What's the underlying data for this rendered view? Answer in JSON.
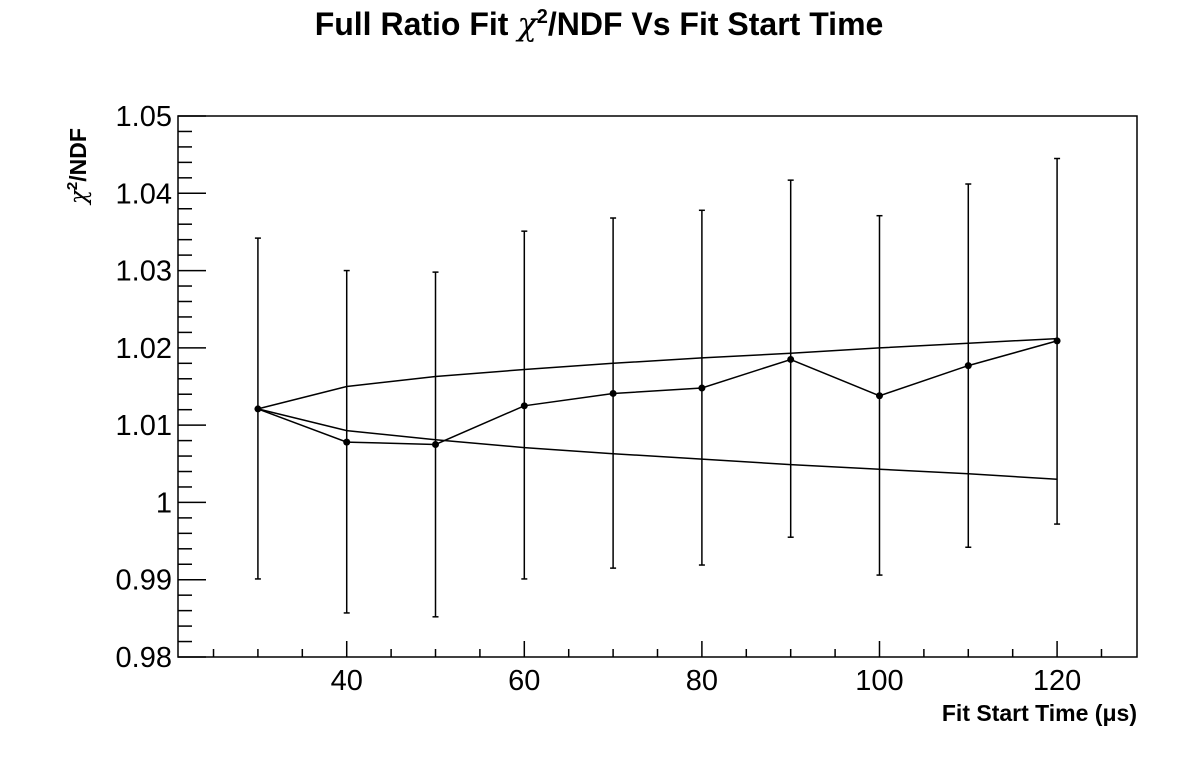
{
  "chart_data": {
    "type": "scatter",
    "title": "Full Ratio Fit χ²/NDF Vs Fit Start Time",
    "title_parts": {
      "pre": "Full Ratio Fit ",
      "chi": "χ",
      "sup": "2",
      "post": "/NDF Vs Fit Start Time"
    },
    "xlabel": "Fit Start Time (μs)",
    "ylabel": "χ²/NDF",
    "ylabel_parts": {
      "chi": "χ",
      "sup": "2",
      "post": "/NDF"
    },
    "xlim": [
      21,
      129
    ],
    "ylim": [
      0.98,
      1.05
    ],
    "x_ticks": [
      40,
      60,
      80,
      100,
      120
    ],
    "x_tick_labels": [
      "40",
      "60",
      "80",
      "100",
      "120"
    ],
    "y_ticks": [
      0.98,
      0.99,
      1.0,
      1.01,
      1.02,
      1.03,
      1.04,
      1.05
    ],
    "y_tick_labels": [
      "0.98",
      "0.99",
      "1",
      "1.01",
      "1.02",
      "1.03",
      "1.04",
      "1.05"
    ],
    "grid": false,
    "legend": "none",
    "series": [
      {
        "kind": "points-with-errors",
        "x": [
          30,
          40,
          50,
          60,
          70,
          80,
          90,
          100,
          110,
          120
        ],
        "y": [
          1.0121,
          1.0078,
          1.0075,
          1.0125,
          1.0141,
          1.0148,
          1.0185,
          1.0138,
          1.0177,
          1.0209
        ],
        "err_low": [
          0.9901,
          0.9857,
          0.9852,
          0.9901,
          0.9915,
          0.9919,
          0.9955,
          0.9906,
          0.9942,
          0.9972
        ],
        "err_high": [
          1.0342,
          1.03,
          1.0298,
          1.0351,
          1.0368,
          1.0378,
          1.0417,
          1.0371,
          1.0412,
          1.0445
        ]
      },
      {
        "kind": "line",
        "x": [
          30,
          40,
          50,
          60,
          70,
          80,
          90,
          100,
          110,
          120
        ],
        "y": [
          1.0121,
          1.015,
          1.0163,
          1.0172,
          1.018,
          1.0187,
          1.0193,
          1.02,
          1.0206,
          1.0212
        ]
      },
      {
        "kind": "line",
        "x": [
          30,
          40,
          50,
          60,
          70,
          80,
          90,
          100,
          110,
          120
        ],
        "y": [
          1.0121,
          1.0093,
          1.0081,
          1.0071,
          1.0063,
          1.0056,
          1.0049,
          1.0043,
          1.0037,
          1.003
        ]
      }
    ]
  }
}
